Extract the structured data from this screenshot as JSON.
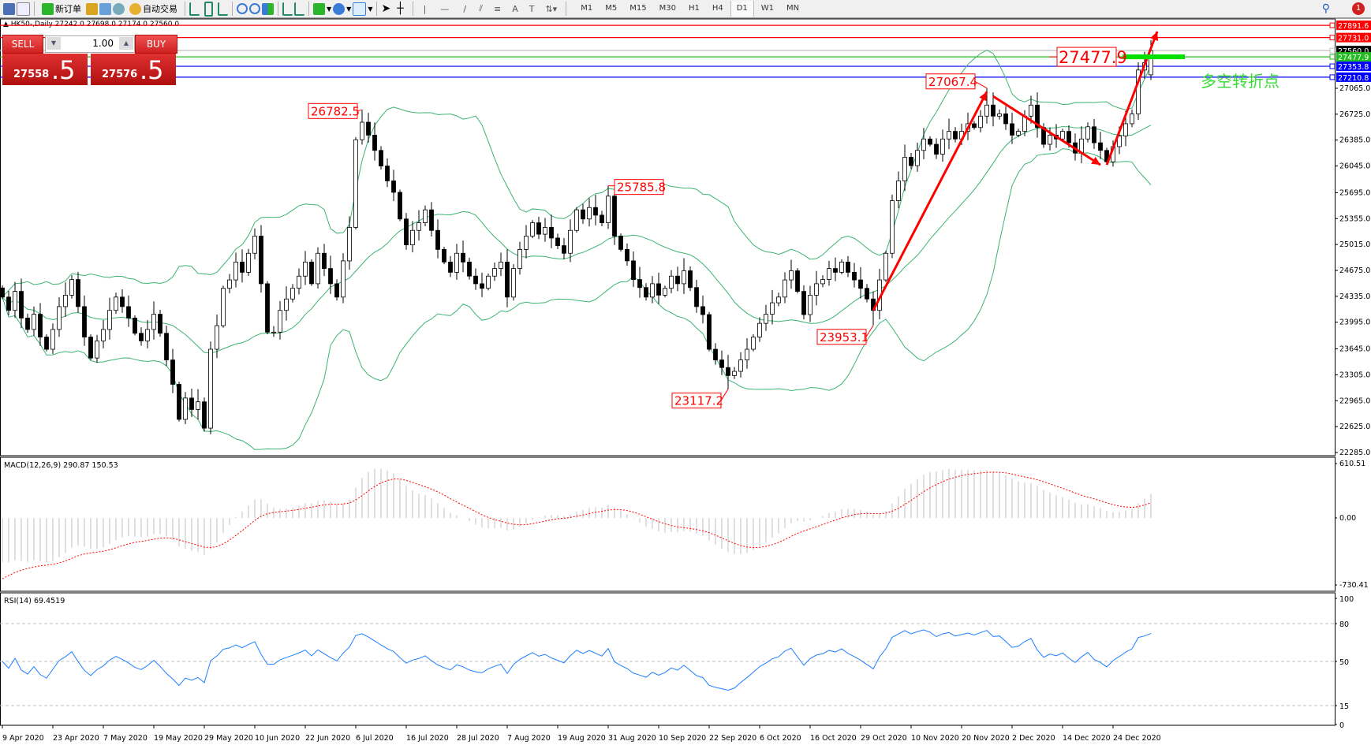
{
  "toolbar": {
    "new_order_label": "新订单",
    "auto_trading_label": "自动交易",
    "timeframes": [
      "M1",
      "M5",
      "M15",
      "M30",
      "H1",
      "H4",
      "D1",
      "W1",
      "MN"
    ],
    "selected_timeframe": "D1",
    "notification_count": "1"
  },
  "chart_header": {
    "symbol_period": "HK50-,Daily",
    "ohlc": "27242.0 27698.0 27174.0 27560.0"
  },
  "one_click": {
    "sell_label": "SELL",
    "buy_label": "BUY",
    "lot": "1.00",
    "sell_price_main": "27558",
    "sell_price_big": ".5",
    "buy_price_main": "27576",
    "buy_price_big": ".5"
  },
  "chart_data": {
    "type": "candlestick",
    "ylim": [
      22285,
      27891.6
    ],
    "yticks": [
      "27065.0",
      "26725.0",
      "26385.0",
      "26045.0",
      "25695.0",
      "25355.0",
      "25015.0",
      "24675.0",
      "24335.0",
      "23995.0",
      "23645.0",
      "23305.0",
      "22965.0",
      "22625.0",
      "22285.0"
    ],
    "xticks": [
      {
        "index": 0,
        "label": "9 Apr 2020"
      },
      {
        "index": 8,
        "label": "23 Apr 2020"
      },
      {
        "index": 16,
        "label": "7 May 2020"
      },
      {
        "index": 24,
        "label": "19 May 2020"
      },
      {
        "index": 32,
        "label": "29 May 2020"
      },
      {
        "index": 40,
        "label": "10 Jun 2020"
      },
      {
        "index": 48,
        "label": "22 Jun 2020"
      },
      {
        "index": 56,
        "label": "6 Jul 2020"
      },
      {
        "index": 64,
        "label": "16 Jul 2020"
      },
      {
        "index": 72,
        "label": "28 Jul 2020"
      },
      {
        "index": 80,
        "label": "7 Aug 2020"
      },
      {
        "index": 88,
        "label": "19 Aug 2020"
      },
      {
        "index": 96,
        "label": "31 Aug 2020"
      },
      {
        "index": 104,
        "label": "10 Sep 2020"
      },
      {
        "index": 112,
        "label": "22 Sep 2020"
      },
      {
        "index": 120,
        "label": "6 Oct 2020"
      },
      {
        "index": 128,
        "label": "16 Oct 2020"
      },
      {
        "index": 136,
        "label": "29 Oct 2020"
      },
      {
        "index": 144,
        "label": "10 Nov 2020"
      },
      {
        "index": 152,
        "label": "20 Nov 2020"
      },
      {
        "index": 160,
        "label": "2 Dec 2020"
      },
      {
        "index": 168,
        "label": "14 Dec 2020"
      },
      {
        "index": 176,
        "label": "24 Dec 2020"
      }
    ],
    "closes": [
      24325,
      24150,
      24400,
      24050,
      23900,
      24100,
      23800,
      23640,
      23900,
      24200,
      24350,
      24555,
      24200,
      23800,
      23525,
      23750,
      23900,
      24150,
      24325,
      24200,
      24050,
      23850,
      23750,
      23900,
      24100,
      23850,
      23500,
      23180,
      22720,
      23000,
      22850,
      22950,
      22605,
      23640,
      23950,
      24440,
      24550,
      24785,
      24650,
      24900,
      25125,
      24500,
      23865,
      23865,
      24150,
      24300,
      24440,
      24600,
      24785,
      24500,
      24900,
      24700,
      24500,
      24325,
      24800,
      25240,
      26390,
      26620,
      26450,
      26250,
      26045,
      25850,
      25700,
      25350,
      25010,
      25200,
      25300,
      25470,
      25200,
      24950,
      24785,
      24650,
      24900,
      24785,
      24600,
      24500,
      24440,
      24600,
      24700,
      24785,
      24325,
      24700,
      24950,
      25125,
      25300,
      25150,
      25240,
      25100,
      25000,
      24900,
      25200,
      25470,
      25350,
      25500,
      25400,
      25300,
      25650,
      25125,
      24950,
      24800,
      24555,
      24450,
      24325,
      24500,
      24350,
      24440,
      24600,
      24500,
      24670,
      24450,
      24200,
      24095,
      23640,
      23500,
      23400,
      23295,
      23350,
      23500,
      23640,
      23800,
      23980,
      24100,
      24250,
      24325,
      24550,
      24670,
      24400,
      24095,
      24350,
      24500,
      24555,
      24700,
      24650,
      24785,
      24650,
      24550,
      24440,
      24300,
      24150,
      24550,
      24900,
      25590,
      25850,
      26160,
      26050,
      26250,
      26400,
      26330,
      26200,
      26400,
      26500,
      26400,
      26500,
      26600,
      26550,
      26700,
      26845,
      26700,
      26730,
      26600,
      26450,
      26500,
      26700,
      26845,
      26550,
      26330,
      26450,
      26400,
      26500,
      26350,
      26215,
      26400,
      26560,
      26350,
      26250,
      26100,
      26300,
      26440,
      26600,
      26730,
      27305,
      27400,
      27560
    ],
    "last_bar": {
      "open": 27242.0,
      "high": 27698.0,
      "low": 27174.0,
      "close": 27560.0
    },
    "extremes": [
      {
        "index": 57,
        "price": 26782.5,
        "label": "26782.5",
        "kind": "high"
      },
      {
        "index": 96,
        "price": 25785.8,
        "label": "25785.8",
        "kind": "high"
      },
      {
        "index": 115,
        "price": 23117.2,
        "label": "23117.2",
        "kind": "low"
      },
      {
        "index": 138,
        "price": 23953.1,
        "label": "23953.1",
        "kind": "low"
      },
      {
        "index": 156,
        "price": 27067.4,
        "label": "27067.4",
        "kind": "high"
      }
    ],
    "hlines": [
      {
        "price": 27891.6,
        "label": "27891.6",
        "color": "#ff0000"
      },
      {
        "price": 27731.0,
        "label": "27731.0",
        "color": "#ff0000"
      },
      {
        "price": 27560.0,
        "label": "27560.0",
        "color": "#000000",
        "line": "#c0c0c0"
      },
      {
        "price": 27477.9,
        "label": "27477.9",
        "color": "#22bb22"
      },
      {
        "price": 27353.8,
        "label": "27353.8",
        "color": "#0000ff"
      },
      {
        "price": 27210.8,
        "label": "27210.8",
        "color": "#0000ff"
      }
    ],
    "level_callout": {
      "price": 27477.9,
      "label": "27477.9"
    },
    "turning_point_text": "多空转折点",
    "arrows": [
      {
        "from": [
          138,
          24150
        ],
        "to": [
          156,
          27020
        ]
      },
      {
        "from": [
          157,
          26960
        ],
        "to": [
          174,
          26060
        ]
      },
      {
        "from": [
          175,
          26060
        ],
        "to": [
          183,
          27810
        ]
      }
    ],
    "bollinger": {
      "period": 20,
      "deviation": 2
    },
    "colors": {
      "bands": "#3cb371",
      "arrow": "#ff0000",
      "bull_body": "#ffffff",
      "bear_body": "#000000"
    }
  },
  "macd": {
    "label": "MACD(12,26,9) 290.87 150.53",
    "ylim": [
      -730.41,
      610.51
    ],
    "ticks": [
      "610.51",
      "0.00",
      "-730.41"
    ],
    "colors": {
      "histogram": "#c0c0c0",
      "signal": "#ff0000"
    }
  },
  "rsi": {
    "label": "RSI(14) 69.4519",
    "period": 14,
    "ticks": [
      "100",
      "80",
      "50",
      "15",
      "0"
    ],
    "levels": [
      80,
      50,
      15
    ],
    "color": "#1e7fff"
  }
}
